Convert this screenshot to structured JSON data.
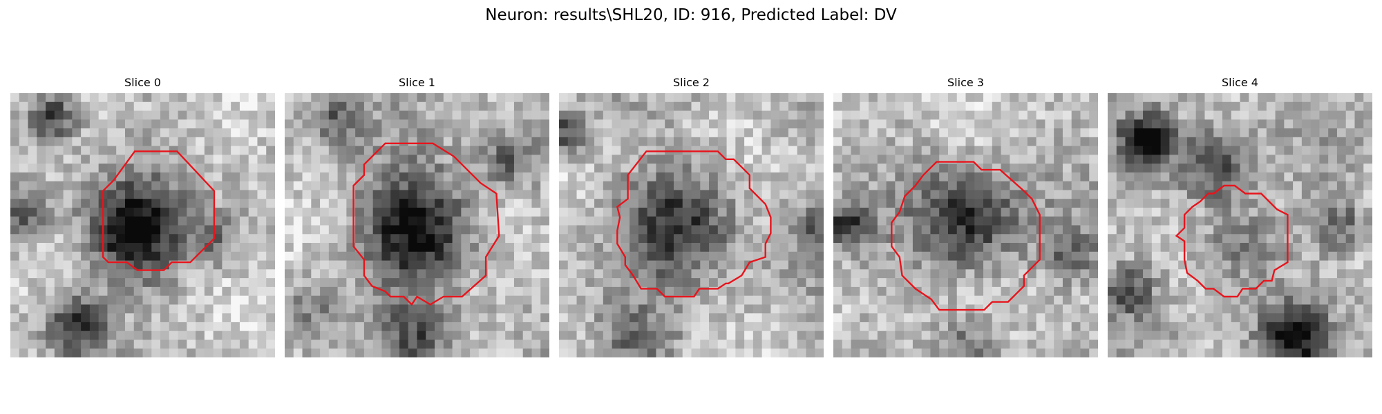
{
  "figure": {
    "title": "Neuron: results\\SHL20, ID: 916, Predicted Label: DV"
  },
  "panels": [
    {
      "label": "Slice 0"
    },
    {
      "label": "Slice 1"
    },
    {
      "label": "Slice 2"
    },
    {
      "label": "Slice 3"
    },
    {
      "label": "Slice 4"
    }
  ],
  "colors": {
    "contour": "#e8141c",
    "background": "#ffffff"
  }
}
